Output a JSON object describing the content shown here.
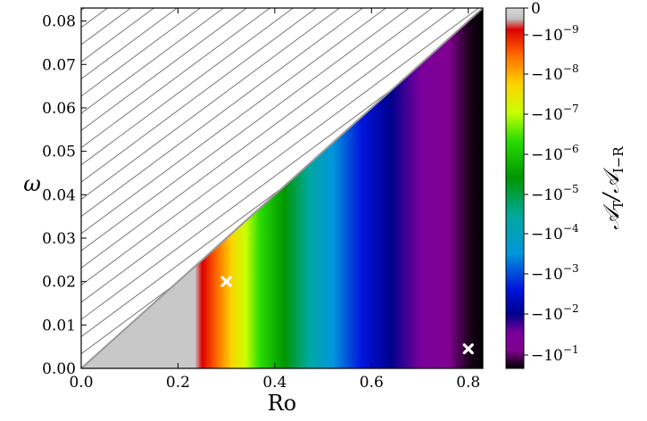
{
  "chart_data": {
    "type": "heatmap",
    "title": "",
    "xlabel": "Ro",
    "ylabel": "ω",
    "xlim": [
      0.0,
      0.83
    ],
    "ylim": [
      0.0,
      0.083
    ],
    "x_ticks": [
      0.0,
      0.2,
      0.4,
      0.6,
      0.8
    ],
    "x_tick_labels": [
      "0.0",
      "0.2",
      "0.4",
      "0.6",
      "0.8"
    ],
    "y_ticks": [
      0.0,
      0.01,
      0.02,
      0.03,
      0.04,
      0.05,
      0.06,
      0.07,
      0.08
    ],
    "y_tick_labels": [
      "0.00",
      "0.01",
      "0.02",
      "0.03",
      "0.04",
      "0.05",
      "0.06",
      "0.07",
      "0.08"
    ],
    "hatched_region": "ω > 0.1·Ro (excluded, hatched)",
    "boundary_line": {
      "x": [
        0.0,
        0.83
      ],
      "y": [
        0.0,
        0.083
      ]
    },
    "grey_region_Ro_max": 0.245,
    "markers": [
      {
        "x": 0.3,
        "y": 0.02,
        "symbol": "x",
        "color": "#ffffff"
      },
      {
        "x": 0.8,
        "y": 0.0045,
        "symbol": "x",
        "color": "#ffffff"
      }
    ],
    "colorbar": {
      "label": "𝒜_T/𝒜_I−R",
      "label_main": "𝒜",
      "label_sub1": "T",
      "label_mid": "/𝒜",
      "label_sub2": "I−R",
      "scale": "symlog (negative values)",
      "tick_labels": [
        "0",
        "−10",
        "−10",
        "−10",
        "−10",
        "−10",
        "−10",
        "−10",
        "−10",
        "−10"
      ],
      "tick_exponents": [
        "",
        "−9",
        "−8",
        "−7",
        "−6",
        "−5",
        "−4",
        "−3",
        "−2",
        "−1"
      ]
    },
    "band_colors_by_Ro": [
      {
        "ro": 0.0,
        "color": "#c8c8c8"
      },
      {
        "ro": 0.235,
        "color": "#c8c8c8"
      },
      {
        "ro": 0.25,
        "color": "#dd0000"
      },
      {
        "ro": 0.28,
        "color": "#ff6a00"
      },
      {
        "ro": 0.31,
        "color": "#ffd200"
      },
      {
        "ro": 0.34,
        "color": "#c8ff00"
      },
      {
        "ro": 0.37,
        "color": "#28dc00"
      },
      {
        "ro": 0.42,
        "color": "#009600"
      },
      {
        "ro": 0.47,
        "color": "#00a8a0"
      },
      {
        "ro": 0.52,
        "color": "#0096dc"
      },
      {
        "ro": 0.58,
        "color": "#0014dc"
      },
      {
        "ro": 0.64,
        "color": "#00008c"
      },
      {
        "ro": 0.7,
        "color": "#78009c"
      },
      {
        "ro": 0.76,
        "color": "#800090"
      },
      {
        "ro": 0.8,
        "color": "#200020"
      },
      {
        "ro": 0.83,
        "color": "#000000"
      }
    ],
    "colorbar_gradient": [
      {
        "t": 0.0,
        "color": "#d9d9d9"
      },
      {
        "t": 0.03,
        "color": "#c0c0c0"
      },
      {
        "t": 0.06,
        "color": "#dd0000"
      },
      {
        "t": 0.13,
        "color": "#ff6a00"
      },
      {
        "t": 0.21,
        "color": "#ffd200"
      },
      {
        "t": 0.29,
        "color": "#c8ff00"
      },
      {
        "t": 0.37,
        "color": "#28dc00"
      },
      {
        "t": 0.47,
        "color": "#009600"
      },
      {
        "t": 0.58,
        "color": "#00a8a0"
      },
      {
        "t": 0.68,
        "color": "#0096dc"
      },
      {
        "t": 0.78,
        "color": "#0014dc"
      },
      {
        "t": 0.85,
        "color": "#00008c"
      },
      {
        "t": 0.9,
        "color": "#78009c"
      },
      {
        "t": 0.95,
        "color": "#800090"
      },
      {
        "t": 1.0,
        "color": "#000000"
      }
    ]
  }
}
